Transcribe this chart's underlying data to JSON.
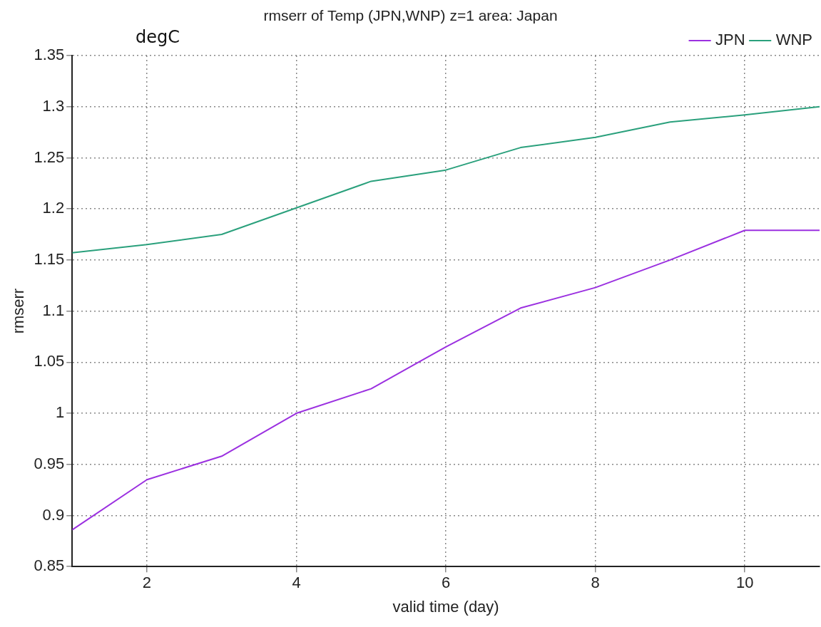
{
  "chart_data": {
    "type": "line",
    "title": "rmserr of Temp (JPN,WNP) z=1 area: Japan",
    "xlabel": "valid time (day)",
    "ylabel": "rmserr",
    "annotations": [
      "degC"
    ],
    "x": [
      1,
      2,
      3,
      4,
      5,
      6,
      7,
      8,
      9,
      10,
      11
    ],
    "series": [
      {
        "name": "JPN",
        "color": "#9b30e0",
        "values": [
          0.886,
          0.935,
          0.958,
          1.0,
          1.024,
          1.065,
          1.103,
          1.123,
          1.15,
          1.179,
          1.179
        ]
      },
      {
        "name": "WNP",
        "color": "#2aa07c",
        "values": [
          1.157,
          1.165,
          1.175,
          1.201,
          1.227,
          1.238,
          1.26,
          1.27,
          1.285,
          1.292,
          1.3
        ]
      }
    ],
    "xlim": [
      1,
      11
    ],
    "xticks": [
      2,
      4,
      6,
      8,
      10
    ],
    "ylim": [
      0.85,
      1.35
    ],
    "yticks": [
      0.85,
      0.9,
      0.95,
      1,
      1.05,
      1.1,
      1.15,
      1.2,
      1.25,
      1.3,
      1.35
    ],
    "grid": true,
    "legend": "top right",
    "marker": "none",
    "line_style": "solid"
  }
}
